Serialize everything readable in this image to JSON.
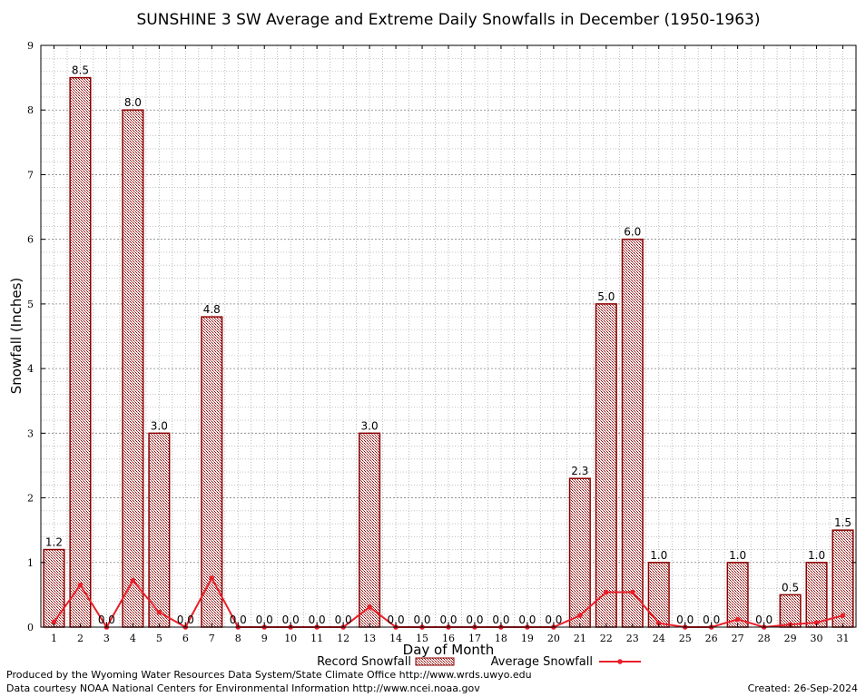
{
  "chart_data": {
    "type": "bar",
    "title": "SUNSHINE 3 SW Average and Extreme Daily Snowfalls in December (1950-1963)",
    "xlabel": "Day of Month",
    "ylabel": "Snowfall (Inches)",
    "ylim": [
      0,
      9
    ],
    "yticks": [
      "0",
      "1",
      "2",
      "3",
      "4",
      "5",
      "6",
      "7",
      "8",
      "9"
    ],
    "categories": [
      "1",
      "2",
      "3",
      "4",
      "5",
      "6",
      "7",
      "8",
      "9",
      "10",
      "11",
      "12",
      "13",
      "14",
      "15",
      "16",
      "17",
      "18",
      "19",
      "20",
      "21",
      "22",
      "23",
      "24",
      "25",
      "26",
      "27",
      "28",
      "29",
      "30",
      "31"
    ],
    "series": [
      {
        "name": "Record Snowfall",
        "kind": "bar",
        "values": [
          1.2,
          8.5,
          0.0,
          8.0,
          3.0,
          0.0,
          4.8,
          0.0,
          0.0,
          0.0,
          0.0,
          0.0,
          3.0,
          0.0,
          0.0,
          0.0,
          0.0,
          0.0,
          0.0,
          0.0,
          2.3,
          5.0,
          6.0,
          1.0,
          0.0,
          0.0,
          1.0,
          0.0,
          0.5,
          1.0,
          1.5
        ],
        "labels": [
          "1.2",
          "8.5",
          "0.0",
          "8.0",
          "3.0",
          "0.0",
          "4.8",
          "0.0",
          "0.0",
          "0.0",
          "0.0",
          "0.0",
          "3.0",
          "0.0",
          "0.0",
          "0.0",
          "0.0",
          "0.0",
          "0.0",
          "0.0",
          "2.3",
          "5.0",
          "6.0",
          "1.0",
          "0.0",
          "0.0",
          "1.0",
          "0.0",
          "0.5",
          "1.0",
          "1.5"
        ]
      },
      {
        "name": "Average Snowfall",
        "kind": "line",
        "values": [
          0.08,
          0.65,
          0.0,
          0.72,
          0.23,
          0.0,
          0.76,
          0.0,
          0.0,
          0.0,
          0.0,
          0.0,
          0.31,
          0.0,
          0.0,
          0.0,
          0.0,
          0.0,
          0.0,
          0.0,
          0.18,
          0.54,
          0.54,
          0.06,
          0.0,
          0.0,
          0.12,
          0.0,
          0.04,
          0.07,
          0.18
        ]
      }
    ],
    "grid": true,
    "legend": "bottom-center",
    "colors": {
      "bar_stroke": "#8b0000",
      "bar_fill": "#c9a0a0",
      "line": "#e8202a",
      "grid": "#a0a0a0"
    }
  },
  "footer": {
    "line1": "Produced by the Wyoming Water Resources Data System/State Climate Office http://www.wrds.uwyo.edu",
    "line2": "Data courtesy NOAA National Centers for Environmental Information http://www.ncei.noaa.gov",
    "created": "Created:  26-Sep-2024"
  }
}
